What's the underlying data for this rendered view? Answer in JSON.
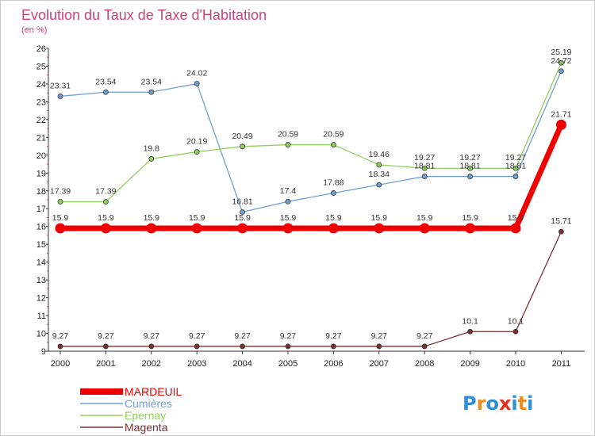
{
  "title": "Evolution du Taux de Taxe d'Habitation",
  "subtitle": "(en %)",
  "brand": {
    "letters": [
      "P",
      "r",
      "o",
      "x",
      "i",
      "t",
      "i"
    ],
    "colors": [
      "#2f8fd6",
      "#f08a1c",
      "#2f8fd6",
      "#e8301c",
      "#2f8fd6",
      "#f08a1c",
      "#2f8fd6"
    ]
  },
  "chart_data": {
    "type": "line",
    "title": "Evolution du Taux de Taxe d'Habitation",
    "subtitle": "(en %)",
    "x": [
      "2000",
      "2001",
      "2002",
      "2003",
      "2004",
      "2005",
      "2006",
      "2007",
      "2008",
      "2009",
      "2010",
      "2011"
    ],
    "ylim": [
      9,
      26
    ],
    "yticks": [
      "9",
      "10",
      "11",
      "12",
      "13",
      "14",
      "15",
      "16",
      "17",
      "18",
      "19",
      "20",
      "21",
      "22",
      "23",
      "24",
      "25",
      "26"
    ],
    "grid": false,
    "legend_position": "bottom-left",
    "series": [
      {
        "name": "MARDEUIL",
        "color": "#ee0000",
        "values": [
          15.9,
          15.9,
          15.9,
          15.9,
          15.9,
          15.9,
          15.9,
          15.9,
          15.9,
          15.9,
          15.9,
          21.71
        ],
        "labels": [
          "15.9",
          "15.9",
          "15.9",
          "15.9",
          "15.9",
          "15.9",
          "15.9",
          "15.9",
          "15.9",
          "15.9",
          "15.9",
          "21.71"
        ],
        "emphasis": true
      },
      {
        "name": "Cumières",
        "color": "#6fa0d0",
        "values": [
          23.31,
          23.54,
          23.54,
          24.02,
          16.81,
          17.4,
          17.88,
          18.34,
          18.81,
          18.81,
          18.81,
          24.72
        ],
        "labels": [
          "23.31",
          "23.54",
          "23.54",
          "24.02",
          "16.81",
          "17.4",
          "17.88",
          "18.34",
          "18.81",
          "18.81",
          "18.81",
          "24.72"
        ],
        "emphasis": false
      },
      {
        "name": "Epernay",
        "color": "#90d060",
        "values": [
          17.39,
          17.39,
          19.8,
          20.19,
          20.49,
          20.59,
          20.59,
          19.46,
          19.27,
          19.27,
          19.27,
          25.19
        ],
        "labels": [
          "17.39",
          "17.39",
          "19.8",
          "20.19",
          "20.49",
          "20.59",
          "20.59",
          "19.46",
          "19.27",
          "19.27",
          "19.27",
          "25.19"
        ],
        "emphasis": false
      },
      {
        "name": "Magenta",
        "color": "#7a3030",
        "values": [
          9.27,
          9.27,
          9.27,
          9.27,
          9.27,
          9.27,
          9.27,
          9.27,
          9.27,
          10.1,
          10.1,
          15.71
        ],
        "labels": [
          "9.27",
          "9.27",
          "9.27",
          "9.27",
          "9.27",
          "9.27",
          "9.27",
          "9.27",
          "9.27",
          "10.1",
          "10.1",
          "15.71"
        ],
        "emphasis": false
      }
    ]
  }
}
